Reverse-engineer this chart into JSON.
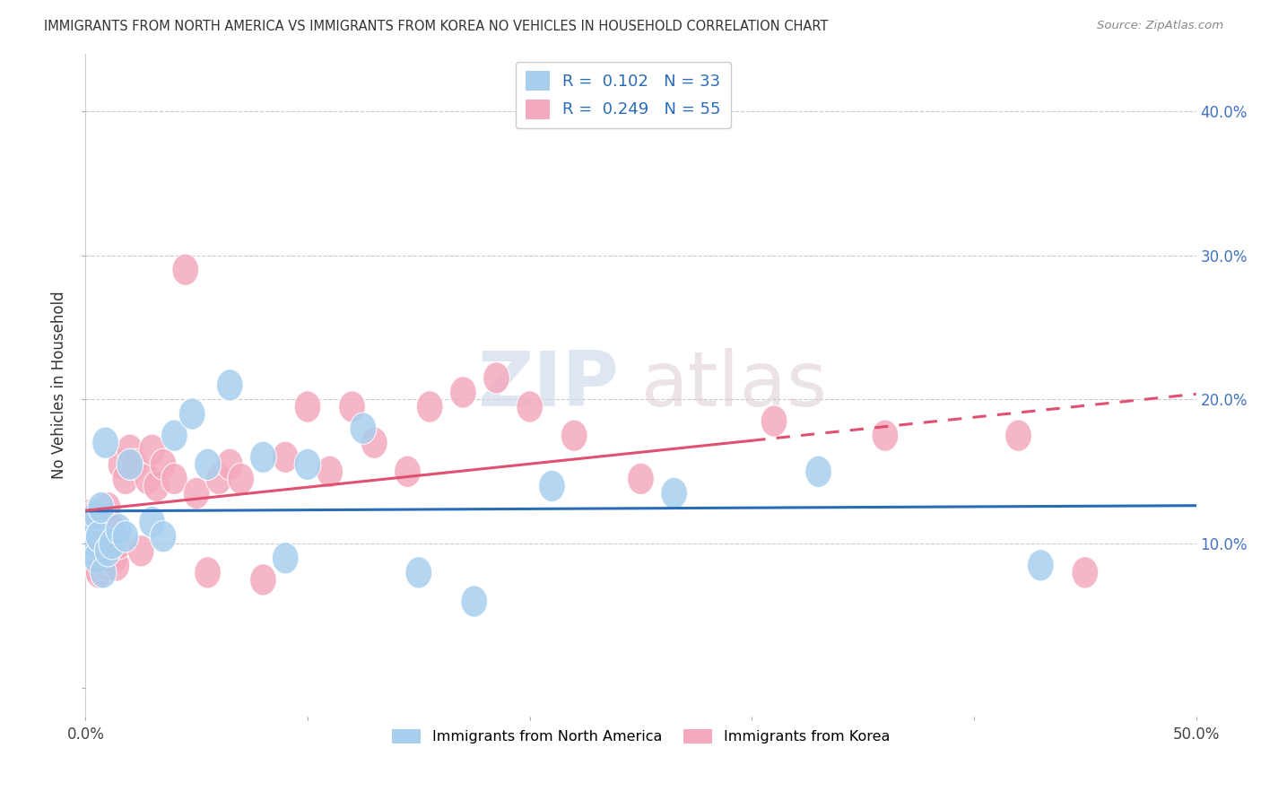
{
  "title": "IMMIGRANTS FROM NORTH AMERICA VS IMMIGRANTS FROM KOREA NO VEHICLES IN HOUSEHOLD CORRELATION CHART",
  "source": "Source: ZipAtlas.com",
  "ylabel": "No Vehicles in Household",
  "xlim": [
    0.0,
    0.5
  ],
  "ylim": [
    -0.02,
    0.44
  ],
  "ytick_vals": [
    0.0,
    0.1,
    0.2,
    0.3,
    0.4
  ],
  "ytick_labels_right": [
    "",
    "10.0%",
    "20.0%",
    "30.0%",
    "40.0%"
  ],
  "blue_color": "#A8CFEE",
  "pink_color": "#F4AABE",
  "blue_line_color": "#2B6CB8",
  "pink_line_color": "#E05070",
  "R_blue": 0.102,
  "N_blue": 33,
  "R_pink": 0.249,
  "N_pink": 55,
  "legend_label_blue": "Immigrants from North America",
  "legend_label_pink": "Immigrants from Korea",
  "watermark_zip": "ZIP",
  "watermark_atlas": "atlas",
  "blue_x": [
    0.001,
    0.002,
    0.002,
    0.003,
    0.003,
    0.004,
    0.005,
    0.005,
    0.006,
    0.007,
    0.008,
    0.009,
    0.01,
    0.012,
    0.015,
    0.018,
    0.02,
    0.03,
    0.035,
    0.04,
    0.048,
    0.055,
    0.065,
    0.08,
    0.09,
    0.1,
    0.125,
    0.15,
    0.175,
    0.21,
    0.265,
    0.33,
    0.43
  ],
  "blue_y": [
    0.1,
    0.105,
    0.11,
    0.095,
    0.115,
    0.1,
    0.12,
    0.09,
    0.105,
    0.125,
    0.08,
    0.17,
    0.095,
    0.1,
    0.11,
    0.105,
    0.155,
    0.115,
    0.105,
    0.175,
    0.19,
    0.155,
    0.21,
    0.16,
    0.09,
    0.155,
    0.18,
    0.08,
    0.06,
    0.14,
    0.135,
    0.15,
    0.085
  ],
  "pink_x": [
    0.001,
    0.001,
    0.002,
    0.002,
    0.003,
    0.003,
    0.004,
    0.004,
    0.005,
    0.005,
    0.006,
    0.006,
    0.007,
    0.008,
    0.008,
    0.009,
    0.01,
    0.011,
    0.012,
    0.013,
    0.014,
    0.015,
    0.016,
    0.018,
    0.02,
    0.022,
    0.025,
    0.028,
    0.03,
    0.032,
    0.035,
    0.04,
    0.045,
    0.05,
    0.055,
    0.06,
    0.065,
    0.07,
    0.08,
    0.09,
    0.1,
    0.11,
    0.12,
    0.13,
    0.145,
    0.155,
    0.17,
    0.185,
    0.2,
    0.22,
    0.25,
    0.31,
    0.36,
    0.42,
    0.45
  ],
  "pink_y": [
    0.1,
    0.11,
    0.09,
    0.12,
    0.095,
    0.085,
    0.105,
    0.12,
    0.1,
    0.095,
    0.115,
    0.08,
    0.09,
    0.105,
    0.1,
    0.085,
    0.125,
    0.095,
    0.11,
    0.09,
    0.085,
    0.1,
    0.155,
    0.145,
    0.165,
    0.155,
    0.095,
    0.145,
    0.165,
    0.14,
    0.155,
    0.145,
    0.29,
    0.135,
    0.08,
    0.145,
    0.155,
    0.145,
    0.075,
    0.16,
    0.195,
    0.15,
    0.195,
    0.17,
    0.15,
    0.195,
    0.205,
    0.215,
    0.195,
    0.175,
    0.145,
    0.185,
    0.175,
    0.175,
    0.08
  ],
  "trend_line_pink_solid_end": 0.3
}
